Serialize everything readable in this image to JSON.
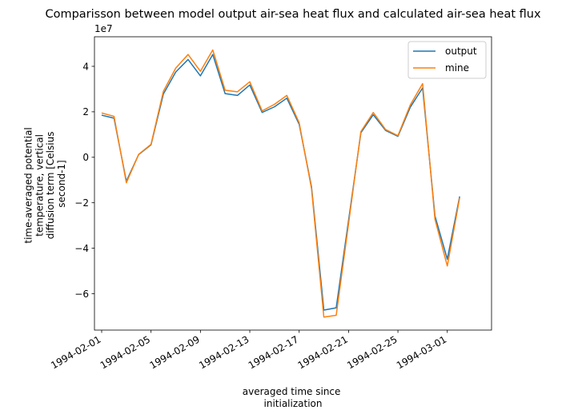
{
  "chart_data": {
    "type": "line",
    "title": "Comparisson between model output air-sea heat flux and calculated air-sea heat flux",
    "xlabel": [
      "averaged time since",
      "initialization"
    ],
    "ylabel": [
      "time-averaged potential",
      "temperature, vertical",
      "diffusion term [Celsius",
      "second-1]"
    ],
    "y_offset_label": "1e7",
    "y_scale": 10000000,
    "ylim": [
      -7.6,
      5.3
    ],
    "xlim": [
      "1994-01-31T10:00",
      "1994-03-04T14:00"
    ],
    "x_tick_labels": [
      "1994-02-01",
      "1994-02-05",
      "1994-02-09",
      "1994-02-13",
      "1994-02-17",
      "1994-02-21",
      "1994-02-25",
      "1994-03-01"
    ],
    "y_tick_labels": [
      "4",
      "2",
      "0",
      "−2",
      "−4",
      "−6"
    ],
    "y_tick_values": [
      4,
      2,
      0,
      -2,
      -4,
      -6
    ],
    "legend_position": "upper right",
    "grid": false,
    "x": [
      "1994-02-01",
      "1994-02-02",
      "1994-02-03",
      "1994-02-04",
      "1994-02-05",
      "1994-02-06",
      "1994-02-07",
      "1994-02-08",
      "1994-02-09",
      "1994-02-10",
      "1994-02-11",
      "1994-02-12",
      "1994-02-13",
      "1994-02-14",
      "1994-02-15",
      "1994-02-16",
      "1994-02-17",
      "1994-02-18",
      "1994-02-19",
      "1994-02-20",
      "1994-02-21",
      "1994-02-22",
      "1994-02-23",
      "1994-02-24",
      "1994-02-25",
      "1994-02-26",
      "1994-02-27",
      "1994-02-28",
      "1994-03-01",
      "1994-03-02"
    ],
    "series": [
      {
        "name": "output",
        "color": "#1f77b4",
        "values": [
          1.85,
          1.72,
          -1.05,
          0.12,
          0.55,
          2.78,
          3.75,
          4.3,
          3.58,
          4.52,
          2.8,
          2.72,
          3.18,
          1.97,
          2.22,
          2.6,
          1.45,
          -1.3,
          -6.72,
          -6.62,
          -2.78,
          1.08,
          1.87,
          1.18,
          0.92,
          2.2,
          3.05,
          -2.58,
          -4.48,
          -1.72
        ]
      },
      {
        "name": "mine",
        "color": "#ff7f0e",
        "values": [
          1.95,
          1.8,
          -1.12,
          0.13,
          0.57,
          2.9,
          3.92,
          4.52,
          3.78,
          4.72,
          2.95,
          2.88,
          3.32,
          2.04,
          2.33,
          2.72,
          1.52,
          -1.38,
          -7.03,
          -6.95,
          -2.92,
          1.13,
          1.97,
          1.22,
          0.95,
          2.3,
          3.24,
          -2.72,
          -4.78,
          -1.78
        ]
      }
    ]
  }
}
